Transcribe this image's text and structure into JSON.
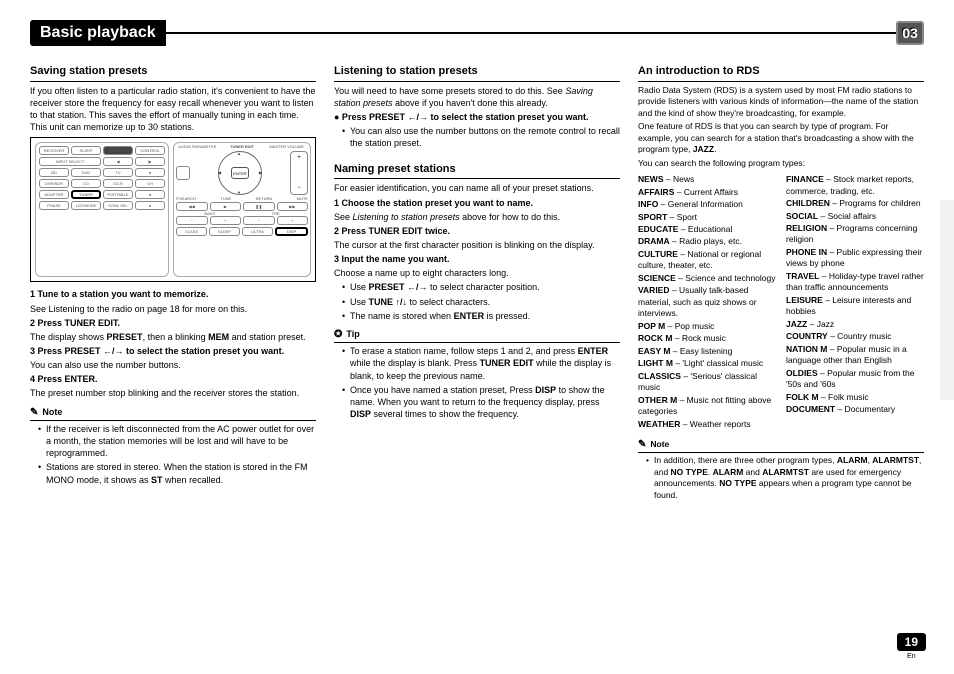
{
  "header": {
    "title": "Basic playback",
    "chapter": "03"
  },
  "footer": {
    "page": "19",
    "lang": "En"
  },
  "col1": {
    "h_saving": "Saving station presets",
    "p_saving": "If you often listen to a particular radio station, it's convenient to have the receiver store the frequency for easy recall whenever you want to listen to that station. This saves the effort of manually tuning in each time. This unit can memorize up to 30 stations.",
    "remote": {
      "left_labels": [
        "RECEIVER",
        "SLEEP",
        "SOURCE",
        "CONTROL",
        "INPUT SELECT",
        "BD",
        "DVD",
        "TV",
        "DVR/BDR",
        "CD",
        "CD-R",
        "ADAPTER",
        "TUNER",
        "PORTABLE",
        "PHASE",
        "LISTMODE",
        "SGNL SEL"
      ],
      "center": "ENTER",
      "right_top": [
        "AUDIO PARAMETER",
        "TUNER EDIT",
        "MASTER VOLUME"
      ],
      "right_small": [
        "TUNE",
        "PRESET",
        "SETUP",
        "P.SEARCH",
        "RETURN",
        "MUTE",
        "BASS",
        "TRE",
        "TUNE",
        "CLASS",
        "SLEEP",
        "ULTRA",
        "DISP"
      ]
    },
    "s1": "1   Tune to a station you want to memorize.",
    "s1b": "See Listening to the radio on page 18 for more on this.",
    "s2": "2   Press TUNER EDIT.",
    "s2b_a": "The display shows ",
    "s2b_b": "PRESET",
    "s2b_c": ", then a blinking ",
    "s2b_d": "MEM",
    "s2b_e": " and station preset.",
    "s3": "3   Press PRESET ←/→ to select the station preset you want.",
    "s3b": "You can also use the number buttons.",
    "s4": "4   Press ENTER.",
    "s4b": "The preset number stop blinking and the receiver stores the station.",
    "note_h": "Note",
    "n1": "If the receiver is left disconnected from the AC power outlet for over a month, the station memories will be lost and will have to be reprogrammed.",
    "n2_a": "Stations are stored in stereo. When the station is stored in the FM MONO mode, it shows as ",
    "n2_b": "ST",
    "n2_c": " when recalled."
  },
  "col2": {
    "h_listen": "Listening to station presets",
    "p_listen_a": "You will need to have some presets stored to do this. See ",
    "p_listen_b": "Saving station presets",
    "p_listen_c": " above if you haven't done this already.",
    "s1": "●  Press PRESET ←/→ to select the station preset you want.",
    "b1": "You can also use the number buttons on the remote control to recall the station preset.",
    "h_naming": "Naming preset stations",
    "p_naming": "For easier identification, you can name all of your preset stations.",
    "n1": "1   Choose the station preset you want to name.",
    "n1b_a": "See ",
    "n1b_b": "Listening to station presets",
    "n1b_c": " above for how to do this.",
    "n2": "2   Press TUNER EDIT twice.",
    "n2b": "The cursor at the first character position is blinking on the display.",
    "n3": "3   Input the name you want.",
    "n3b": "Choose a name up to eight characters long.",
    "u1_a": "Use ",
    "u1_b": "PRESET ←/→",
    "u1_c": " to select character position.",
    "u2_a": "Use ",
    "u2_b": "TUNE ↑/↓",
    "u2_c": " to select characters.",
    "u3_a": "The name is stored when ",
    "u3_b": "ENTER",
    "u3_c": " is pressed.",
    "tip_h": "Tip",
    "t1_a": "To erase a station name, follow steps 1 and 2, and press ",
    "t1_b": "ENTER",
    "t1_c": " while the display is blank. Press ",
    "t1_d": "TUNER EDIT",
    "t1_e": " while the display is blank, to keep the previous name.",
    "t2_a": "Once you have named a station preset, Press ",
    "t2_b": "DISP",
    "t2_c": " to show the name. When you want to return to the frequency display, press ",
    "t2_d": "DISP",
    "t2_e": " several times to show the frequency."
  },
  "col3": {
    "h_rds": "An introduction to RDS",
    "p1": "Radio Data System (RDS) is a system used by most FM radio stations to provide listeners with various kinds of information—the name of the station and the kind of show they're broadcasting, for example.",
    "p2_a": "One feature of RDS is that you can search by type of program. For example, you can search for a station that's broadcasting a show with the program type, ",
    "p2_b": "JAZZ",
    "p2_c": ".",
    "p3": "You can search the following program types:",
    "left": [
      {
        "k": "NEWS",
        "v": " – News"
      },
      {
        "k": "AFFAIRS",
        "v": " – Current Affairs"
      },
      {
        "k": "INFO",
        "v": " – General Information"
      },
      {
        "k": "SPORT",
        "v": " – Sport"
      },
      {
        "k": "EDUCATE",
        "v": " – Educational"
      },
      {
        "k": "DRAMA",
        "v": " – Radio plays, etc."
      },
      {
        "k": "CULTURE",
        "v": " – National or regional culture, theater, etc."
      },
      {
        "k": "SCIENCE",
        "v": " – Science and technology"
      },
      {
        "k": "VARIED",
        "v": " – Usually talk-based material, such as quiz shows or interviews."
      },
      {
        "k": "POP M",
        "v": " – Pop music"
      },
      {
        "k": "ROCK M",
        "v": " – Rock music"
      },
      {
        "k": "EASY M",
        "v": " – Easy listening"
      },
      {
        "k": "LIGHT M",
        "v": " – 'Light' classical music"
      },
      {
        "k": "CLASSICS",
        "v": " – 'Serious' classical music"
      },
      {
        "k": "OTHER M",
        "v": " – Music not fitting above categories"
      },
      {
        "k": "WEATHER",
        "v": " – Weather reports"
      }
    ],
    "right": [
      {
        "k": "FINANCE",
        "v": " – Stock market reports, commerce, trading, etc."
      },
      {
        "k": "CHILDREN",
        "v": " – Programs for children"
      },
      {
        "k": "SOCIAL",
        "v": " – Social affairs"
      },
      {
        "k": "RELIGION",
        "v": " – Programs concerning religion"
      },
      {
        "k": "PHONE IN",
        "v": " – Public expressing their views by phone"
      },
      {
        "k": "TRAVEL",
        "v": " – Holiday-type travel rather than traffic announcements"
      },
      {
        "k": "LEISURE",
        "v": " – Leisure interests and hobbies"
      },
      {
        "k": "JAZZ",
        "v": " – Jazz"
      },
      {
        "k": "COUNTRY",
        "v": " – Country music"
      },
      {
        "k": "NATION M",
        "v": " – Popular music in a language other than English"
      },
      {
        "k": "OLDIES",
        "v": " – Popular music from the '50s and '60s"
      },
      {
        "k": "FOLK M",
        "v": " – Folk music"
      },
      {
        "k": "DOCUMENT",
        "v": " – Documentary"
      }
    ],
    "note_h": "Note",
    "note_a": "In addition, there are three other program types, ",
    "note_b": "ALARM",
    "note_c": ", ",
    "note_d": "ALARMTST",
    "note_e": ", and ",
    "note_f": "NO TYPE",
    "note_g": ". ",
    "note_h2": "ALARM",
    "note_i": " and ",
    "note_j": "ALARMTST",
    "note_k": " are used for emergency announcements. ",
    "note_l": "NO TYPE",
    "note_m": " appears when a program type cannot be found."
  }
}
